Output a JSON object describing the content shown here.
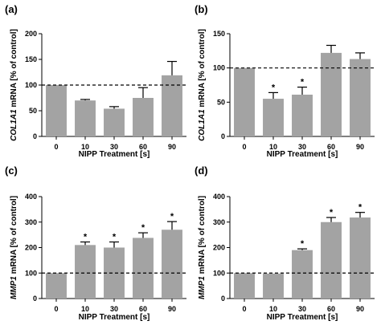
{
  "chart_data": [
    {
      "panel": "(a)",
      "type": "bar",
      "categories": [
        "0",
        "10",
        "30",
        "60",
        "90"
      ],
      "values": [
        100,
        70,
        54,
        75,
        119
      ],
      "errors": [
        0,
        2,
        4,
        20,
        27
      ],
      "significant": [
        false,
        false,
        false,
        false,
        false
      ],
      "reference_line": 100,
      "ylabel_gene": "COL1A1",
      "ylabel_rest": " mRNA [% of control]",
      "xlabel": "NIPP Treatment [s]",
      "ylim": [
        0,
        200
      ],
      "yticks": [
        "0",
        "50",
        "100",
        "150",
        "200"
      ],
      "bar_color": "#a3a3a3"
    },
    {
      "panel": "(b)",
      "type": "bar",
      "categories": [
        "0",
        "10",
        "30",
        "60",
        "90"
      ],
      "values": [
        100,
        55,
        61,
        122,
        113
      ],
      "errors": [
        0,
        9,
        11,
        11,
        9
      ],
      "significant": [
        false,
        true,
        true,
        false,
        false
      ],
      "reference_line": 100,
      "ylabel_gene": "COL1A1",
      "ylabel_rest": " mRNA [% of control]",
      "xlabel": "NIPP Treatment [s]",
      "ylim": [
        0,
        150
      ],
      "yticks": [
        "0",
        "50",
        "100",
        "150"
      ],
      "bar_color": "#a3a3a3"
    },
    {
      "panel": "(c)",
      "type": "bar",
      "categories": [
        "0",
        "10",
        "30",
        "60",
        "90"
      ],
      "values": [
        100,
        210,
        200,
        238,
        270
      ],
      "errors": [
        0,
        12,
        22,
        20,
        32
      ],
      "significant": [
        false,
        true,
        true,
        true,
        true
      ],
      "reference_line": 100,
      "ylabel_gene": "MMP1",
      "ylabel_rest": " mRNA [% of control]",
      "xlabel": "NIPP Treatment [s]",
      "ylim": [
        0,
        400
      ],
      "yticks": [
        "0",
        "100",
        "200",
        "300",
        "400"
      ],
      "bar_color": "#a3a3a3"
    },
    {
      "panel": "(d)",
      "type": "bar",
      "categories": [
        "0",
        "10",
        "30",
        "60",
        "90"
      ],
      "values": [
        100,
        98,
        190,
        300,
        318
      ],
      "errors": [
        0,
        0,
        5,
        18,
        20
      ],
      "significant": [
        false,
        false,
        true,
        true,
        true
      ],
      "reference_line": 100,
      "ylabel_gene": "MMP1",
      "ylabel_rest": " mRNA [% of control]",
      "xlabel": "NIPP Treatment [s]",
      "ylim": [
        0,
        400
      ],
      "yticks": [
        "0",
        "100",
        "200",
        "300",
        "400"
      ],
      "bar_color": "#a3a3a3"
    }
  ]
}
